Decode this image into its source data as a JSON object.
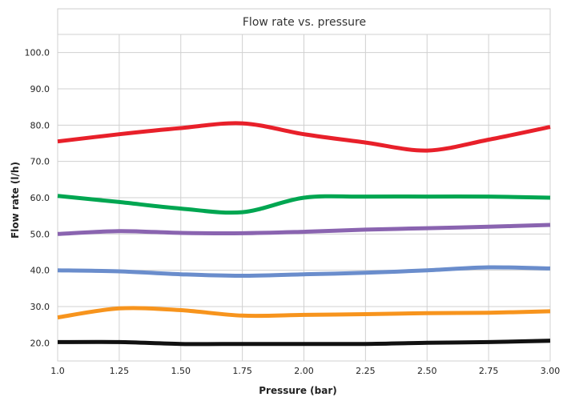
{
  "chart_data": {
    "type": "line",
    "title": "Flow rate vs. pressure",
    "xlabel": "Pressure (bar)",
    "ylabel": "Flow rate (l/h)",
    "x": [
      1.0,
      1.25,
      1.5,
      1.75,
      2.0,
      2.25,
      2.5,
      2.75,
      3.0
    ],
    "x_tick_labels": [
      "1.0",
      "1.25",
      "1.50",
      "1.75",
      "2.00",
      "2.25",
      "2.50",
      "2.75",
      "3.00"
    ],
    "y_tick_values": [
      20,
      30,
      40,
      50,
      60,
      70,
      80,
      90,
      100
    ],
    "y_tick_labels": [
      "20.0",
      "30.0",
      "40.0",
      "50.0",
      "60.0",
      "70.0",
      "80.0",
      "90.0",
      "100.0"
    ],
    "xlim": [
      1.0,
      3.0
    ],
    "ylim": [
      15,
      105
    ],
    "grid": true,
    "series": [
      {
        "color": "#e8202a",
        "values": [
          75.5,
          77.5,
          79.2,
          80.5,
          77.5,
          75.2,
          73.0,
          76.0,
          79.5
        ]
      },
      {
        "color": "#00a651",
        "values": [
          60.5,
          58.8,
          57.0,
          56.0,
          60.0,
          60.3,
          60.3,
          60.3,
          60.0
        ]
      },
      {
        "color": "#8a64b0",
        "values": [
          50.0,
          50.8,
          50.3,
          50.2,
          50.6,
          51.2,
          51.6,
          52.0,
          52.5
        ]
      },
      {
        "color": "#6a8dcc",
        "values": [
          40.0,
          39.7,
          38.9,
          38.5,
          38.9,
          39.3,
          40.0,
          40.8,
          40.5
        ]
      },
      {
        "color": "#f7941d",
        "values": [
          27.0,
          29.5,
          29.0,
          27.5,
          27.7,
          27.9,
          28.2,
          28.3,
          28.7
        ]
      },
      {
        "color": "#111111",
        "values": [
          20.2,
          20.2,
          19.7,
          19.7,
          19.7,
          19.7,
          20.0,
          20.2,
          20.6
        ]
      }
    ]
  }
}
